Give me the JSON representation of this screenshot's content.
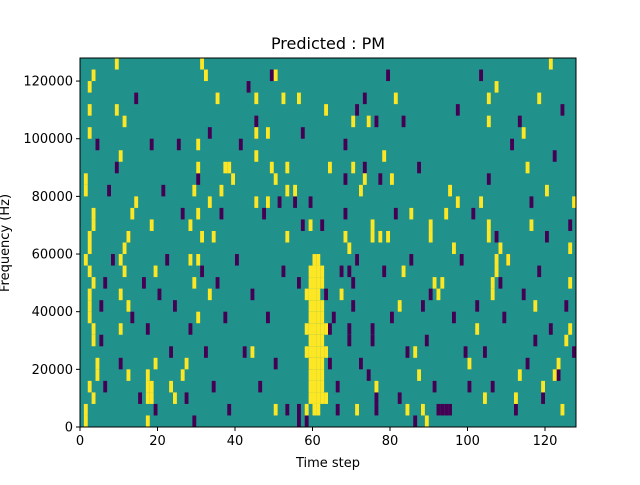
{
  "chart_data": {
    "type": "heatmap",
    "title": "Predicted : PM",
    "xlabel": "Time step",
    "ylabel": "Frequency (Hz)",
    "xlim": [
      0,
      128
    ],
    "ylim": [
      0,
      128000
    ],
    "xticks": [
      0,
      20,
      40,
      60,
      80,
      100,
      120
    ],
    "yticks": [
      0,
      20000,
      40000,
      60000,
      80000,
      100000,
      120000
    ],
    "xtick_labels": [
      "0",
      "20",
      "40",
      "60",
      "80",
      "100",
      "120"
    ],
    "ytick_labels": [
      "0",
      "20000",
      "40000",
      "60000",
      "80000",
      "100000",
      "120000"
    ],
    "grid": false,
    "colors": {
      "background": "#21918c",
      "low": "#440154",
      "high": "#fde725"
    },
    "cell_size": {
      "time_step": 1,
      "frequency_hz": 4000
    },
    "yellow_cells": [
      [
        1,
        0
      ],
      [
        1,
        1
      ],
      [
        3,
        2
      ],
      [
        2,
        3
      ],
      [
        4,
        4
      ],
      [
        4,
        5
      ],
      [
        3,
        7
      ],
      [
        3,
        8
      ],
      [
        2,
        9
      ],
      [
        2,
        10
      ],
      [
        2,
        11
      ],
      [
        3,
        12
      ],
      [
        2,
        13
      ],
      [
        1,
        14
      ],
      [
        2,
        15
      ],
      [
        2,
        16
      ],
      [
        3,
        17
      ],
      [
        3,
        18
      ],
      [
        1,
        20
      ],
      [
        1,
        21
      ],
      [
        2,
        25
      ],
      [
        2,
        27
      ],
      [
        2,
        29
      ],
      [
        3,
        30
      ],
      [
        10,
        8
      ],
      [
        12,
        10
      ],
      [
        10,
        11
      ],
      [
        11,
        13
      ],
      [
        10,
        14
      ],
      [
        11,
        15
      ],
      [
        12,
        16
      ],
      [
        13,
        18
      ],
      [
        14,
        19
      ],
      [
        10,
        23
      ],
      [
        11,
        26
      ],
      [
        9,
        27
      ],
      [
        9,
        31
      ],
      [
        12,
        4
      ],
      [
        17,
        0
      ],
      [
        17,
        2
      ],
      [
        17,
        3
      ],
      [
        17,
        4
      ],
      [
        18,
        2
      ],
      [
        18,
        3
      ],
      [
        19,
        5
      ],
      [
        18,
        17
      ],
      [
        19,
        13
      ],
      [
        23,
        3
      ],
      [
        24,
        2
      ],
      [
        26,
        4
      ],
      [
        27,
        5
      ],
      [
        28,
        17
      ],
      [
        28,
        14
      ],
      [
        30,
        9
      ],
      [
        29,
        12
      ],
      [
        30,
        14
      ],
      [
        30,
        18
      ],
      [
        31,
        16
      ],
      [
        29,
        20
      ],
      [
        30,
        22
      ],
      [
        30,
        24
      ],
      [
        31,
        31
      ],
      [
        32,
        30
      ],
      [
        33,
        11
      ],
      [
        34,
        16
      ],
      [
        33,
        19
      ],
      [
        35,
        28
      ],
      [
        36,
        20
      ],
      [
        37,
        22
      ],
      [
        38,
        22
      ],
      [
        39,
        21
      ],
      [
        44,
        6
      ],
      [
        45,
        19
      ],
      [
        45,
        23
      ],
      [
        45,
        25
      ],
      [
        45,
        28
      ],
      [
        48,
        19
      ],
      [
        48,
        25
      ],
      [
        50,
        1
      ],
      [
        49,
        22
      ],
      [
        50,
        21
      ],
      [
        50,
        30
      ],
      [
        52,
        28
      ],
      [
        53,
        20
      ],
      [
        53,
        16
      ],
      [
        53,
        22
      ],
      [
        56,
        28
      ],
      [
        55,
        20
      ],
      [
        58,
        1
      ],
      [
        59,
        2
      ],
      [
        59,
        3
      ],
      [
        59,
        4
      ],
      [
        59,
        5
      ],
      [
        59,
        6
      ],
      [
        59,
        7
      ],
      [
        59,
        8
      ],
      [
        59,
        9
      ],
      [
        59,
        10
      ],
      [
        59,
        11
      ],
      [
        59,
        12
      ],
      [
        59,
        13
      ],
      [
        60,
        1
      ],
      [
        60,
        2
      ],
      [
        60,
        3
      ],
      [
        60,
        4
      ],
      [
        60,
        5
      ],
      [
        60,
        6
      ],
      [
        60,
        7
      ],
      [
        60,
        8
      ],
      [
        60,
        9
      ],
      [
        60,
        10
      ],
      [
        60,
        11
      ],
      [
        60,
        12
      ],
      [
        60,
        13
      ],
      [
        60,
        14
      ],
      [
        61,
        1
      ],
      [
        61,
        2
      ],
      [
        61,
        3
      ],
      [
        61,
        4
      ],
      [
        61,
        5
      ],
      [
        61,
        6
      ],
      [
        61,
        7
      ],
      [
        61,
        8
      ],
      [
        61,
        9
      ],
      [
        61,
        10
      ],
      [
        61,
        11
      ],
      [
        61,
        12
      ],
      [
        61,
        13
      ],
      [
        61,
        14
      ],
      [
        62,
        2
      ],
      [
        62,
        3
      ],
      [
        62,
        4
      ],
      [
        62,
        5
      ],
      [
        62,
        6
      ],
      [
        62,
        7
      ],
      [
        62,
        8
      ],
      [
        62,
        9
      ],
      [
        62,
        10
      ],
      [
        62,
        12
      ],
      [
        62,
        13
      ],
      [
        63,
        2
      ],
      [
        63,
        6
      ],
      [
        63,
        8
      ],
      [
        58,
        8
      ],
      [
        58,
        6
      ],
      [
        58,
        11
      ],
      [
        59,
        17
      ],
      [
        63,
        27
      ],
      [
        64,
        22
      ],
      [
        67,
        11
      ],
      [
        68,
        16
      ],
      [
        69,
        15
      ],
      [
        70,
        22
      ],
      [
        70,
        26
      ],
      [
        71,
        1
      ],
      [
        72,
        20
      ],
      [
        73,
        21
      ],
      [
        74,
        26
      ],
      [
        75,
        16
      ],
      [
        75,
        17
      ],
      [
        76,
        3
      ],
      [
        77,
        16
      ],
      [
        78,
        23
      ],
      [
        79,
        16
      ],
      [
        80,
        21
      ],
      [
        81,
        28
      ],
      [
        82,
        10
      ],
      [
        83,
        13
      ],
      [
        84,
        1
      ],
      [
        85,
        18
      ],
      [
        86,
        6
      ],
      [
        87,
        4
      ],
      [
        88,
        1
      ],
      [
        89,
        0
      ],
      [
        90,
        16
      ],
      [
        90,
        17
      ],
      [
        91,
        12
      ],
      [
        92,
        11
      ],
      [
        93,
        12
      ],
      [
        94,
        18
      ],
      [
        95,
        20
      ],
      [
        96,
        15
      ],
      [
        97,
        19
      ],
      [
        100,
        5
      ],
      [
        102,
        8
      ],
      [
        103,
        19
      ],
      [
        104,
        2
      ],
      [
        105,
        16
      ],
      [
        105,
        17
      ],
      [
        105,
        26
      ],
      [
        105,
        28
      ],
      [
        106,
        12
      ],
      [
        106,
        11
      ],
      [
        107,
        14
      ],
      [
        107,
        13
      ],
      [
        107,
        29
      ],
      [
        108,
        15
      ],
      [
        110,
        14
      ],
      [
        112,
        2
      ],
      [
        113,
        4
      ],
      [
        114,
        25
      ],
      [
        115,
        22
      ],
      [
        116,
        17
      ],
      [
        117,
        10
      ],
      [
        118,
        28
      ],
      [
        119,
        3
      ],
      [
        120,
        20
      ],
      [
        121,
        31
      ],
      [
        122,
        4
      ],
      [
        123,
        5
      ],
      [
        124,
        1
      ],
      [
        125,
        7
      ],
      [
        126,
        8
      ],
      [
        126,
        12
      ],
      [
        126,
        15
      ],
      [
        127,
        19
      ]
    ],
    "purple_cells": [
      [
        5,
        10
      ],
      [
        6,
        12
      ],
      [
        5,
        7
      ],
      [
        7,
        20
      ],
      [
        4,
        24
      ],
      [
        6,
        3
      ],
      [
        8,
        14
      ],
      [
        9,
        22
      ],
      [
        10,
        5
      ],
      [
        12,
        16
      ],
      [
        13,
        9
      ],
      [
        14,
        28
      ],
      [
        15,
        2
      ],
      [
        16,
        12
      ],
      [
        17,
        8
      ],
      [
        18,
        24
      ],
      [
        19,
        1
      ],
      [
        20,
        11
      ],
      [
        21,
        20
      ],
      [
        22,
        14
      ],
      [
        23,
        6
      ],
      [
        24,
        10
      ],
      [
        25,
        24
      ],
      [
        26,
        18
      ],
      [
        27,
        2
      ],
      [
        28,
        8
      ],
      [
        29,
        0
      ],
      [
        30,
        21
      ],
      [
        31,
        13
      ],
      [
        32,
        6
      ],
      [
        33,
        25
      ],
      [
        34,
        3
      ],
      [
        35,
        12
      ],
      [
        36,
        18
      ],
      [
        37,
        9
      ],
      [
        38,
        1
      ],
      [
        40,
        14
      ],
      [
        41,
        24
      ],
      [
        42,
        6
      ],
      [
        43,
        29
      ],
      [
        44,
        11
      ],
      [
        45,
        26
      ],
      [
        46,
        3
      ],
      [
        47,
        18
      ],
      [
        48,
        9
      ],
      [
        49,
        30
      ],
      [
        50,
        5
      ],
      [
        51,
        19
      ],
      [
        52,
        13
      ],
      [
        53,
        1
      ],
      [
        55,
        19
      ],
      [
        56,
        12
      ],
      [
        56,
        0
      ],
      [
        56,
        1
      ],
      [
        57,
        17
      ],
      [
        57,
        25
      ],
      [
        58,
        0
      ],
      [
        59,
        19
      ],
      [
        60,
        14
      ],
      [
        62,
        17
      ],
      [
        63,
        11
      ],
      [
        64,
        5
      ],
      [
        65,
        9
      ],
      [
        66,
        3
      ],
      [
        67,
        13
      ],
      [
        68,
        18
      ],
      [
        68,
        21
      ],
      [
        68,
        24
      ],
      [
        69,
        7
      ],
      [
        69,
        8
      ],
      [
        70,
        10
      ],
      [
        70,
        12
      ],
      [
        71,
        14
      ],
      [
        72,
        5
      ],
      [
        73,
        28
      ],
      [
        74,
        4
      ],
      [
        75,
        7
      ],
      [
        75,
        8
      ],
      [
        76,
        1
      ],
      [
        76,
        2
      ],
      [
        77,
        21
      ],
      [
        78,
        13
      ],
      [
        79,
        30
      ],
      [
        80,
        9
      ],
      [
        81,
        18
      ],
      [
        82,
        2
      ],
      [
        83,
        26
      ],
      [
        84,
        6
      ],
      [
        85,
        14
      ],
      [
        86,
        0
      ],
      [
        87,
        22
      ],
      [
        88,
        10
      ],
      [
        89,
        7
      ],
      [
        90,
        11
      ],
      [
        91,
        3
      ],
      [
        92,
        1
      ],
      [
        93,
        1
      ],
      [
        94,
        1
      ],
      [
        95,
        1
      ],
      [
        96,
        9
      ],
      [
        97,
        27
      ],
      [
        98,
        14
      ],
      [
        99,
        6
      ],
      [
        100,
        3
      ],
      [
        101,
        18
      ],
      [
        102,
        10
      ],
      [
        103,
        30
      ],
      [
        104,
        6
      ],
      [
        105,
        21
      ],
      [
        106,
        3
      ],
      [
        107,
        16
      ],
      [
        108,
        12
      ],
      [
        109,
        9
      ],
      [
        110,
        14
      ],
      [
        111,
        24
      ],
      [
        112,
        1
      ],
      [
        113,
        26
      ],
      [
        114,
        11
      ],
      [
        115,
        5
      ],
      [
        116,
        19
      ],
      [
        117,
        7
      ],
      [
        118,
        13
      ],
      [
        119,
        2
      ],
      [
        120,
        16
      ],
      [
        121,
        8
      ],
      [
        122,
        23
      ],
      [
        123,
        4
      ],
      [
        124,
        27
      ],
      [
        125,
        10
      ],
      [
        126,
        17
      ],
      [
        127,
        6
      ],
      [
        59,
        5
      ],
      [
        64,
        8
      ],
      [
        66,
        1
      ],
      [
        69,
        13
      ],
      [
        71,
        27
      ],
      [
        73,
        22
      ],
      [
        76,
        26
      ]
    ]
  }
}
